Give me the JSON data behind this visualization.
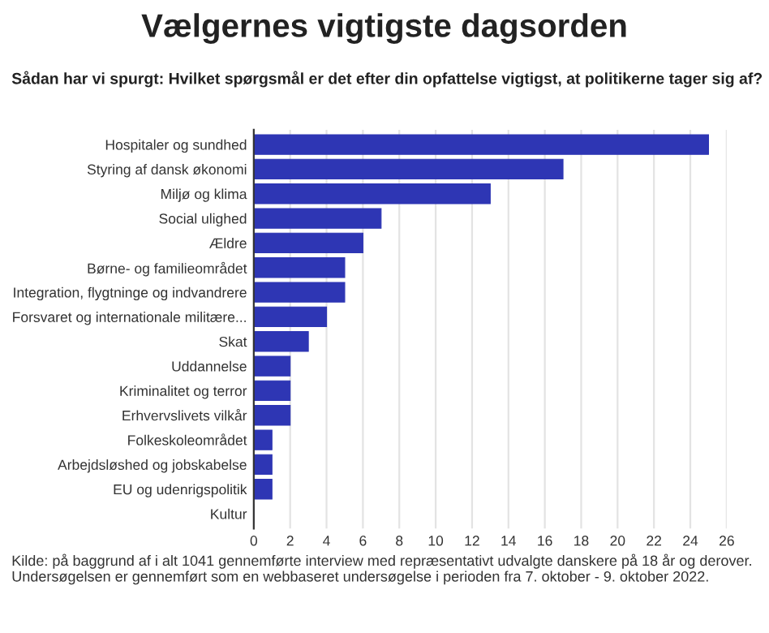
{
  "chart_data": {
    "type": "bar",
    "orientation": "horizontal",
    "title": "Vælgernes vigtigste dagsorden",
    "subtitle": "Sådan har vi spurgt: Hvilket spørgsmål er det efter din opfattelse vigtigst, at politikerne tager sig af?",
    "categories": [
      "Hospitaler og sundhed",
      "Styring af dansk økonomi",
      "Miljø og klima",
      "Social ulighed",
      "Ældre",
      "Børne- og familieområdet",
      "Integration, flygtninge og indvandrere",
      "Forsvaret og internationale militære...",
      "Skat",
      "Uddannelse",
      "Kriminalitet og terror",
      "Erhvervslivets vilkår",
      "Folkeskoleområdet",
      "Arbejdsløshed og jobskabelse",
      "EU og udenrigspolitik",
      "Kultur"
    ],
    "values": [
      25,
      17,
      13,
      7,
      6,
      5,
      5,
      4,
      3,
      2,
      2,
      2,
      1,
      1,
      1,
      0
    ],
    "color": "#2e36b4",
    "xlim": [
      0,
      26
    ],
    "xticks": [
      0,
      2,
      4,
      6,
      8,
      10,
      12,
      14,
      16,
      18,
      20,
      22,
      24,
      26
    ],
    "grid": "x",
    "legend": false,
    "annotations": [
      "Kilde: på baggrund af i alt 1041 gennemførte interview med repræsentativt udvalgte danskere på 18 år og derover. Undersøgelsen er gennemført som en webbaseret undersøgelse i perioden fra 7. oktober - 9. oktober 2022."
    ]
  }
}
